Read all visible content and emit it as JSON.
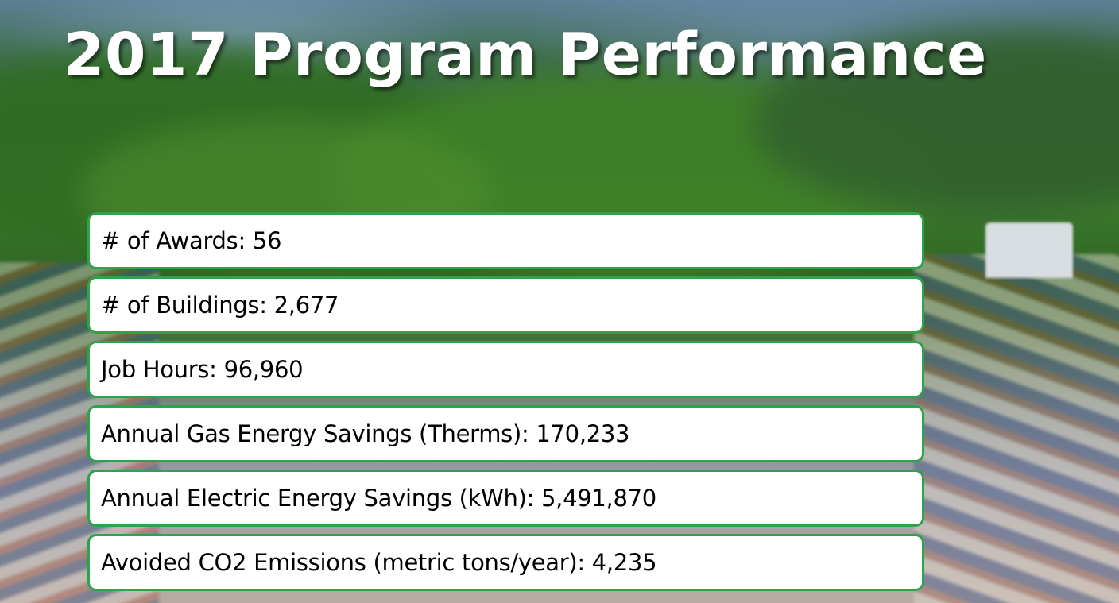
{
  "slide": {
    "title": "2017 Program Performance"
  },
  "metrics": [
    {
      "text": "# of Awards: 56"
    },
    {
      "text": "# of Buildings: 2,677"
    },
    {
      "text": "Job Hours: 96,960"
    },
    {
      "text": "Annual Gas Energy Savings (Therms): 170,233"
    },
    {
      "text": "Annual Electric Energy Savings (kWh): 5,491,870"
    },
    {
      "text": "Avoided CO2 Emissions (metric tons/year): 4,235"
    }
  ],
  "colors": {
    "accent_border": "#2ea34a",
    "title_text": "#ffffff",
    "row_background": "#ffffff"
  }
}
